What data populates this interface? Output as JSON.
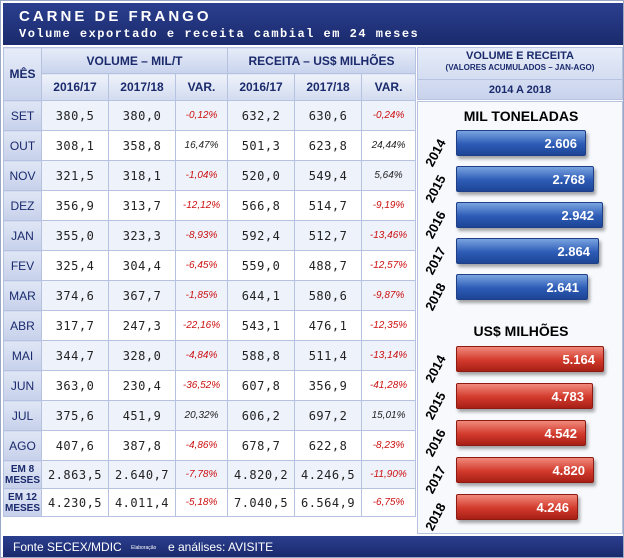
{
  "header": {
    "title": "CARNE DE FRANGO",
    "subtitle": "Volume exportado e receita cambial em 24 meses"
  },
  "table": {
    "mes_label": "MÊS",
    "group_volume": "VOLUME – MIL/T",
    "group_receita": "RECEITA – US$ MILHÕES",
    "sub_headers": [
      "2016/17",
      "2017/18",
      "VAR.",
      "2016/17",
      "2017/18",
      "VAR."
    ],
    "rows": [
      {
        "mes": "SET",
        "v1": "380,5",
        "v2": "380,0",
        "vvar": "-0,12%",
        "r1": "632,2",
        "r2": "630,6",
        "rvar": "-0,24%"
      },
      {
        "mes": "OUT",
        "v1": "308,1",
        "v2": "358,8",
        "vvar": "16,47%",
        "r1": "501,3",
        "r2": "623,8",
        "rvar": "24,44%"
      },
      {
        "mes": "NOV",
        "v1": "321,5",
        "v2": "318,1",
        "vvar": "-1,04%",
        "r1": "520,0",
        "r2": "549,4",
        "rvar": "5,64%"
      },
      {
        "mes": "DEZ",
        "v1": "356,9",
        "v2": "313,7",
        "vvar": "-12,12%",
        "r1": "566,8",
        "r2": "514,7",
        "rvar": "-9,19%"
      },
      {
        "mes": "JAN",
        "v1": "355,0",
        "v2": "323,3",
        "vvar": "-8,93%",
        "r1": "592,4",
        "r2": "512,7",
        "rvar": "-13,46%"
      },
      {
        "mes": "FEV",
        "v1": "325,4",
        "v2": "304,4",
        "vvar": "-6,45%",
        "r1": "559,0",
        "r2": "488,7",
        "rvar": "-12,57%"
      },
      {
        "mes": "MAR",
        "v1": "374,6",
        "v2": "367,7",
        "vvar": "-1,85%",
        "r1": "644,1",
        "r2": "580,6",
        "rvar": "-9,87%"
      },
      {
        "mes": "ABR",
        "v1": "317,7",
        "v2": "247,3",
        "vvar": "-22,16%",
        "r1": "543,1",
        "r2": "476,1",
        "rvar": "-12,35%"
      },
      {
        "mes": "MAI",
        "v1": "344,7",
        "v2": "328,0",
        "vvar": "-4,84%",
        "r1": "588,8",
        "r2": "511,4",
        "rvar": "-13,14%"
      },
      {
        "mes": "JUN",
        "v1": "363,0",
        "v2": "230,4",
        "vvar": "-36,52%",
        "r1": "607,8",
        "r2": "356,9",
        "rvar": "-41,28%"
      },
      {
        "mes": "JUL",
        "v1": "375,6",
        "v2": "451,9",
        "vvar": "20,32%",
        "r1": "606,2",
        "r2": "697,2",
        "rvar": "15,01%"
      },
      {
        "mes": "AGO",
        "v1": "407,6",
        "v2": "387,8",
        "vvar": "-4,86%",
        "r1": "678,7",
        "r2": "622,8",
        "rvar": "-8,23%"
      }
    ],
    "totals": [
      {
        "mes": "EM 8 MESES",
        "v1": "2.863,5",
        "v2": "2.640,7",
        "vvar": "-7,78%",
        "r1": "4.820,2",
        "r2": "4.246,5",
        "rvar": "-11,90%"
      },
      {
        "mes": "EM 12 MESES",
        "v1": "4.230,5",
        "v2": "4.011,4",
        "vvar": "-5,18%",
        "r1": "7.040,5",
        "r2": "6.564,9",
        "rvar": "-6,75%"
      }
    ]
  },
  "side_panel": {
    "heading_line1": "VOLUME E RECEITA",
    "heading_line2": "(VALORES ACUMULADOS – JAN-AGO)",
    "heading_line3": "2014 A 2018",
    "volume_title": "MIL TONELADAS",
    "receita_title": "US$ MILHÕES"
  },
  "chart_data": [
    {
      "type": "bar",
      "title": "MIL TONELADAS",
      "categories": [
        "2014",
        "2015",
        "2016",
        "2017",
        "2018"
      ],
      "values": [
        2606,
        2768,
        2942,
        2864,
        2641
      ],
      "value_labels": [
        "2.606",
        "2.768",
        "2.942",
        "2.864",
        "2.641"
      ],
      "color": "#2c5bb6"
    },
    {
      "type": "bar",
      "title": "US$ MILHÕES",
      "categories": [
        "2014",
        "2015",
        "2016",
        "2017",
        "2018"
      ],
      "values": [
        5164,
        4783,
        4542,
        4820,
        4246
      ],
      "value_labels": [
        "5.164",
        "4.783",
        "4.542",
        "4.820",
        "4.246"
      ],
      "color": "#d23a2c"
    }
  ],
  "footer": {
    "source": "Fonte SECEX/MDIC",
    "small": "Elaboração",
    "analysis": "e análises: AVISITE"
  }
}
